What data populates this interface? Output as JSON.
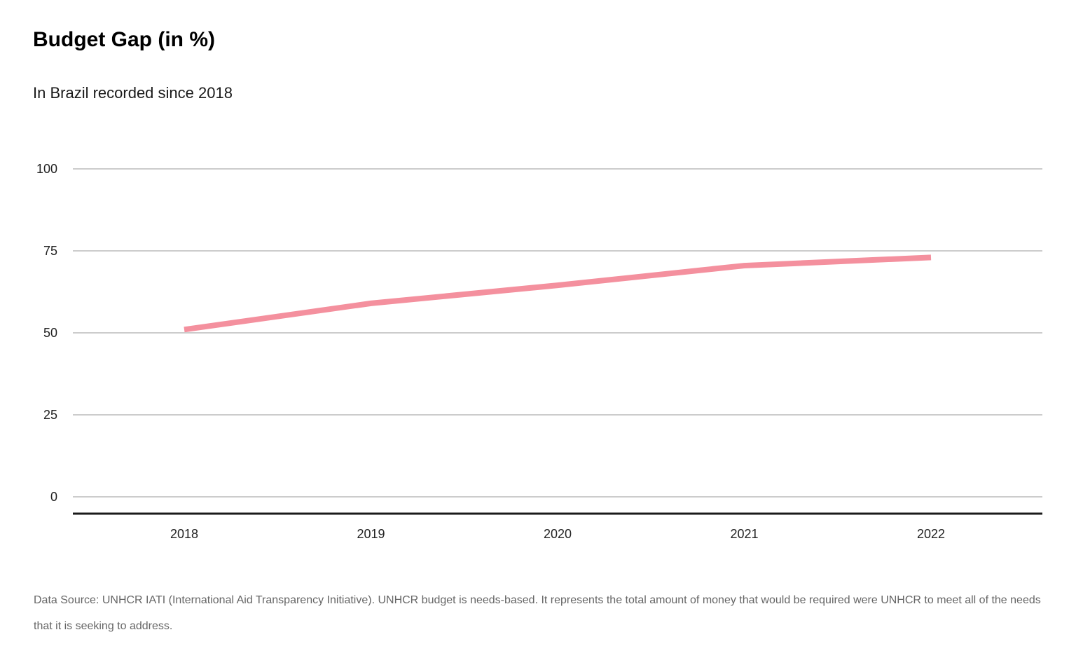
{
  "header": {
    "title": "Budget Gap (in %)",
    "subtitle": "In Brazil recorded since 2018"
  },
  "footer": {
    "source": "Data Source: UNHCR IATI (International Aid Transparency Initiative). UNHCR budget is needs-based. It represents the total amount of money that would be required were UNHCR to meet all of the needs that it is seeking to address."
  },
  "chart_data": {
    "type": "line",
    "title": "Budget Gap (in %)",
    "subtitle": "In Brazil recorded since 2018",
    "xlabel": "",
    "ylabel": "",
    "categories": [
      "2018",
      "2019",
      "2020",
      "2021",
      "2022"
    ],
    "series": [
      {
        "values": [
          51,
          59,
          64.5,
          70.5,
          73
        ]
      }
    ],
    "ylim": [
      0,
      100
    ],
    "yticks": [
      0,
      25,
      50,
      75,
      100
    ],
    "grid": true,
    "legend": "none",
    "colors": {
      "line": "#f4909e",
      "grid": "#cccccc",
      "baseline": "#1a1a1a"
    }
  }
}
